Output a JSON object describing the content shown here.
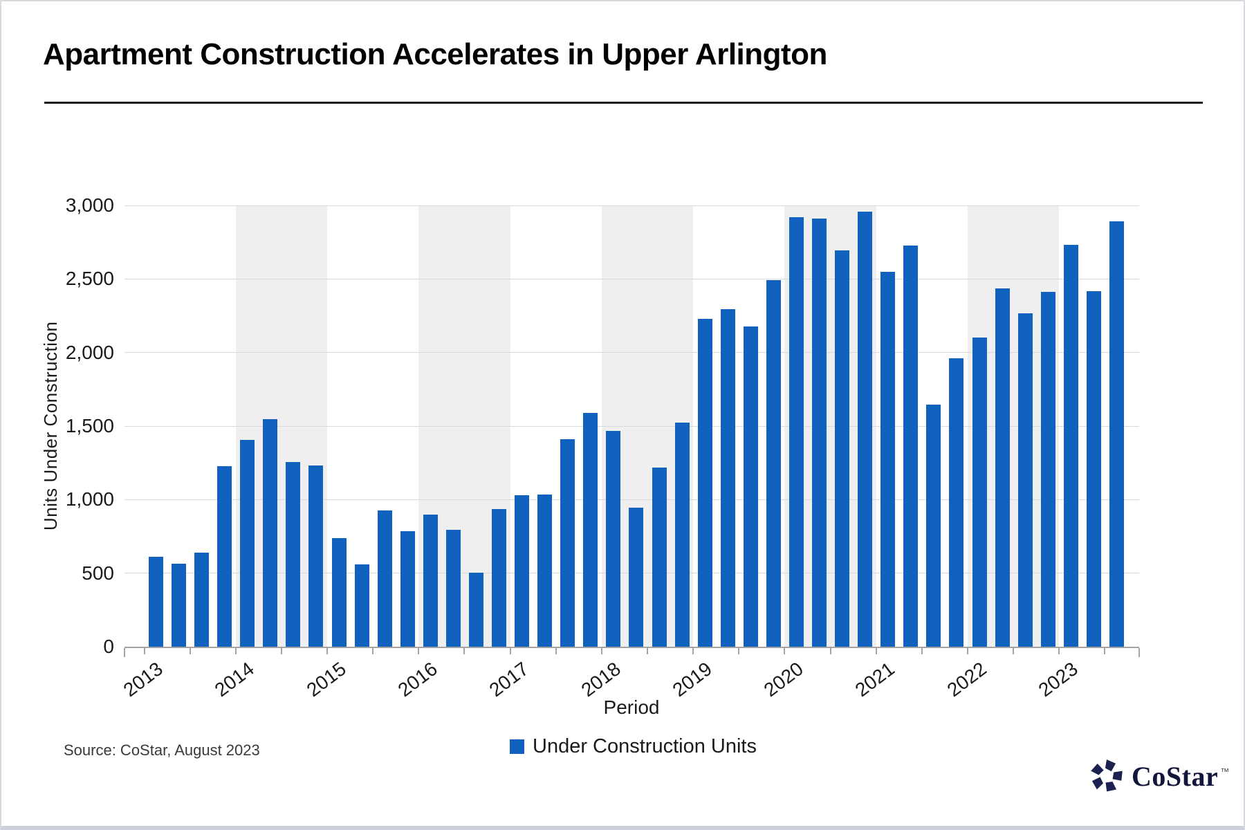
{
  "chart_data": {
    "type": "bar",
    "title": "Apartment Construction Accelerates in Upper Arlington",
    "xlabel": "Period",
    "ylabel": "Units Under Construction",
    "legend": "Under Construction Units",
    "legend_position": "bottom-center",
    "ylim": [
      0,
      3000
    ],
    "ytick_interval": 500,
    "ytick_labels": [
      "0",
      "500",
      "1,000",
      "1,500",
      "2,000",
      "2,500",
      "3,000"
    ],
    "grid": "horizontal-light",
    "bar_color": "#1161BE",
    "shaded_band_color": "#EFEFEF",
    "years": [
      "2013",
      "2014",
      "2015",
      "2016",
      "2017",
      "2018",
      "2019",
      "2020",
      "2021",
      "2022",
      "2023"
    ],
    "shaded_years": [
      "2014",
      "2016",
      "2018",
      "2020",
      "2022"
    ],
    "quarters_per_year": 4,
    "series": [
      {
        "name": "Under Construction Units",
        "points": [
          {
            "period": "2013 Q1",
            "value": 610
          },
          {
            "period": "2013 Q2",
            "value": 565
          },
          {
            "period": "2013 Q3",
            "value": 640
          },
          {
            "period": "2013 Q4",
            "value": 1225
          },
          {
            "period": "2014 Q1",
            "value": 1405
          },
          {
            "period": "2014 Q2",
            "value": 1545
          },
          {
            "period": "2014 Q3",
            "value": 1255
          },
          {
            "period": "2014 Q4",
            "value": 1230
          },
          {
            "period": "2015 Q1",
            "value": 740
          },
          {
            "period": "2015 Q2",
            "value": 560
          },
          {
            "period": "2015 Q3",
            "value": 925
          },
          {
            "period": "2015 Q4",
            "value": 785
          },
          {
            "period": "2016 Q1",
            "value": 900
          },
          {
            "period": "2016 Q2",
            "value": 795
          },
          {
            "period": "2016 Q3",
            "value": 505
          },
          {
            "period": "2016 Q4",
            "value": 935
          },
          {
            "period": "2017 Q1",
            "value": 1030
          },
          {
            "period": "2017 Q2",
            "value": 1035
          },
          {
            "period": "2017 Q3",
            "value": 1410
          },
          {
            "period": "2017 Q4",
            "value": 1590
          },
          {
            "period": "2018 Q1",
            "value": 1465
          },
          {
            "period": "2018 Q2",
            "value": 945
          },
          {
            "period": "2018 Q3",
            "value": 1220
          },
          {
            "period": "2018 Q4",
            "value": 1525
          },
          {
            "period": "2019 Q1",
            "value": 2230
          },
          {
            "period": "2019 Q2",
            "value": 2295
          },
          {
            "period": "2019 Q3",
            "value": 2175
          },
          {
            "period": "2019 Q4",
            "value": 2490
          },
          {
            "period": "2020 Q1",
            "value": 2920
          },
          {
            "period": "2020 Q2",
            "value": 2910
          },
          {
            "period": "2020 Q3",
            "value": 2695
          },
          {
            "period": "2020 Q4",
            "value": 2960
          },
          {
            "period": "2021 Q1",
            "value": 2550
          },
          {
            "period": "2021 Q2",
            "value": 2725
          },
          {
            "period": "2021 Q3",
            "value": 1645
          },
          {
            "period": "2021 Q4",
            "value": 1960
          },
          {
            "period": "2022 Q1",
            "value": 2100
          },
          {
            "period": "2022 Q2",
            "value": 2435
          },
          {
            "period": "2022 Q3",
            "value": 2265
          },
          {
            "period": "2022 Q4",
            "value": 2410
          },
          {
            "period": "2023 Q1",
            "value": 2730
          },
          {
            "period": "2023 Q2",
            "value": 2415
          },
          {
            "period": "2023 Q3",
            "value": 2890
          }
        ]
      }
    ]
  },
  "footer": {
    "source": "Source: CoStar, August 2023",
    "logo_text": "CoStar",
    "trademark": "™"
  }
}
